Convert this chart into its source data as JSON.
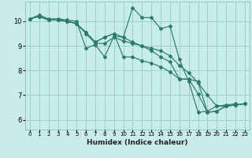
{
  "xlabel": "Humidex (Indice chaleur)",
  "bg_color": "#c8ece9",
  "grid_color": "#9ecfca",
  "line_color": "#2a7a6e",
  "xlim": [
    -0.5,
    23.5
  ],
  "ylim": [
    5.6,
    10.8
  ],
  "yticks": [
    6,
    7,
    8,
    9,
    10
  ],
  "xticks": [
    0,
    1,
    2,
    3,
    4,
    5,
    6,
    7,
    8,
    9,
    10,
    11,
    12,
    13,
    14,
    15,
    16,
    17,
    18,
    19,
    20,
    21,
    22,
    23
  ],
  "lines": [
    {
      "x": [
        0,
        1,
        2,
        3,
        4,
        5,
        6,
        7,
        8,
        9,
        10,
        11,
        12,
        13,
        14,
        15,
        16,
        17,
        18,
        19,
        20,
        21,
        22,
        23
      ],
      "y": [
        10.1,
        10.25,
        10.1,
        10.1,
        10.05,
        10.0,
        8.9,
        9.05,
        8.55,
        9.4,
        9.35,
        10.55,
        10.15,
        10.15,
        9.7,
        9.8,
        8.45,
        7.55,
        6.3,
        6.35,
        6.55,
        6.6,
        6.65,
        null
      ]
    },
    {
      "x": [
        0,
        1,
        2,
        3,
        4,
        5,
        6,
        7,
        8,
        9,
        10,
        11,
        12,
        13,
        14,
        15,
        16,
        17,
        18,
        19,
        20,
        21,
        22,
        23
      ],
      "y": [
        10.1,
        10.2,
        10.05,
        10.05,
        10.0,
        9.9,
        9.5,
        9.1,
        9.1,
        9.35,
        9.2,
        9.1,
        9.0,
        8.9,
        8.8,
        8.6,
        8.2,
        7.9,
        7.5,
        7.0,
        6.55,
        6.55,
        6.6,
        6.65
      ]
    },
    {
      "x": [
        0,
        1,
        2,
        3,
        4,
        5,
        6,
        7,
        8,
        9,
        10,
        11,
        12,
        13,
        14,
        15,
        16,
        17,
        18,
        19,
        20,
        21,
        22,
        23
      ],
      "y": [
        10.1,
        10.2,
        10.05,
        10.05,
        10.0,
        9.9,
        9.55,
        9.15,
        9.35,
        9.5,
        9.35,
        9.15,
        9.0,
        8.8,
        8.55,
        8.35,
        7.65,
        7.65,
        7.05,
        6.3,
        6.35,
        6.55,
        6.6,
        6.65
      ]
    },
    {
      "x": [
        0,
        1,
        2,
        3,
        4,
        5,
        6,
        7,
        8,
        9,
        10,
        11,
        12,
        13,
        14,
        15,
        16,
        17,
        18,
        19,
        20,
        21,
        22,
        23
      ],
      "y": [
        10.1,
        10.2,
        10.05,
        10.05,
        10.0,
        9.9,
        9.55,
        9.15,
        9.35,
        9.5,
        8.55,
        8.55,
        8.4,
        8.3,
        8.15,
        7.95,
        7.65,
        7.65,
        7.55,
        6.3,
        6.35,
        6.55,
        6.6,
        6.65
      ]
    }
  ]
}
